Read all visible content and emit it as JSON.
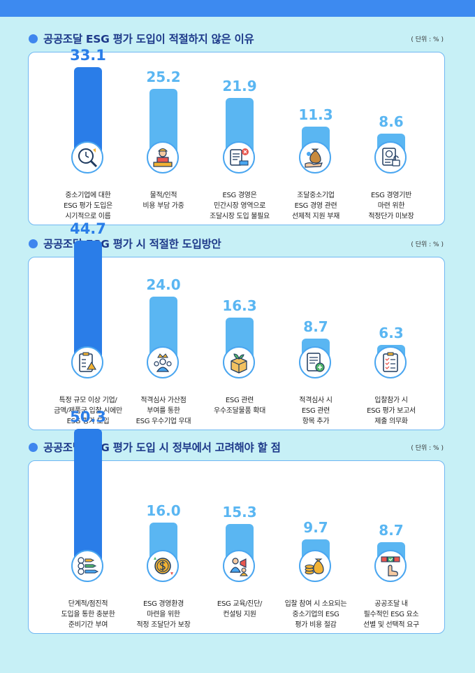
{
  "colors": {
    "background": "#c7f0f6",
    "top_bar": "#3d8af0",
    "title": "#1e3a8a",
    "bar_highlight": "#2a7de8",
    "bar_default": "#5ab6f2",
    "panel_border": "#6fb7f2"
  },
  "sections": [
    {
      "title": "공공조달 ESG 평가 도입이 적절하지 않은 이유",
      "unit": "( 단위 : % )",
      "items": [
        {
          "value": "33.1",
          "label": "중소기업에 대한\nESG 평가 도입은\n시기적으로 이름",
          "icon": "magnifier-clock-icon"
        },
        {
          "value": "25.2",
          "label": "물적/인적\n비용 부담 가중",
          "icon": "worker-desk-icon"
        },
        {
          "value": "21.9",
          "label": "ESG 경영은\n민간시장 영역으로\n조달시장 도입 불필요",
          "icon": "clipboard-cart-icon"
        },
        {
          "value": "11.3",
          "label": "조달중소기업\nESG 경영 관련\n선제적 지원 부재",
          "icon": "hand-money-bag-icon"
        },
        {
          "value": "8.6",
          "label": "ESG 경영기반\n마련 위한\n적정단가 미보장",
          "icon": "dollar-document-lock-icon"
        }
      ]
    },
    {
      "title": "공공조달 ESG 평가 시 적절한 도입방안",
      "unit": "( 단위 : % )",
      "items": [
        {
          "value": "44.7",
          "label": "특정 규모 이상 기업/\n금액/제품군 입찰 시에만\nESG 평가 도입",
          "icon": "clipboard-warning-icon"
        },
        {
          "value": "24.0",
          "label": "적격심사 가산점\n부여를 통한\nESG 우수기업 우대",
          "icon": "crown-people-icon"
        },
        {
          "value": "16.3",
          "label": "ESG 관련\n우수조달물품 확대",
          "icon": "box-sprout-icon"
        },
        {
          "value": "8.7",
          "label": "적격심사 시\nESG 관련\n항목 추가",
          "icon": "document-plus-icon"
        },
        {
          "value": "6.3",
          "label": "입찰참가 시\nESG 평가 보고서\n제출 의무화",
          "icon": "checklist-icon"
        }
      ]
    },
    {
      "title": "공공조달 ESG 평가 도입 시 정부에서 고려해야 할 점",
      "unit": "( 단위 : % )",
      "items": [
        {
          "value": "50.3",
          "label": "단계적/점진적\n도입을 통한 충분한\n준비기간 부여",
          "icon": "steps-arrows-icon"
        },
        {
          "value": "16.0",
          "label": "ESG 경영환경\n마련을 위한\n적정 조달단가 보장",
          "icon": "dollar-coin-icon"
        },
        {
          "value": "15.3",
          "label": "ESG 교육/진단/\n컨설팅 지원",
          "icon": "teacher-megaphone-icon"
        },
        {
          "value": "9.7",
          "label": "입찰 참여 시 소요되는\n중소기업의 ESG\n평가 비용 절감",
          "icon": "coins-bag-icon"
        },
        {
          "value": "8.7",
          "label": "공공조달 내\n필수적인 ESG 요소\n선별 및 선택적 요구",
          "icon": "hand-checklist-icon"
        }
      ]
    }
  ],
  "chart_data": [
    {
      "type": "bar",
      "title": "공공조달 ESG 평가 도입이 적절하지 않은 이유",
      "categories": [
        "중소기업에 대한 ESG 평가 도입은 시기적으로 이름",
        "물적/인적 비용 부담 가중",
        "ESG 경영은 민간시장 영역으로 조달시장 도입 불필요",
        "조달중소기업 ESG 경영 관련 선제적 지원 부재",
        "ESG 경영기반 마련 위한 적정단가 미보장"
      ],
      "values": [
        33.1,
        25.2,
        21.9,
        11.3,
        8.6
      ],
      "unit": "%",
      "ylim": [
        0,
        55
      ]
    },
    {
      "type": "bar",
      "title": "공공조달 ESG 평가 시 적절한 도입방안",
      "categories": [
        "특정 규모 이상 기업/금액/제품군 입찰 시에만 ESG 평가 도입",
        "적격심사 가산점 부여를 통한 ESG 우수기업 우대",
        "ESG 관련 우수조달물품 확대",
        "적격심사 시 ESG 관련 항목 추가",
        "입찰참가 시 ESG 평가 보고서 제출 의무화"
      ],
      "values": [
        44.7,
        24.0,
        16.3,
        8.7,
        6.3
      ],
      "unit": "%",
      "ylim": [
        0,
        55
      ]
    },
    {
      "type": "bar",
      "title": "공공조달 ESG 평가 도입 시 정부에서 고려해야 할 점",
      "categories": [
        "단계적/점진적 도입을 통한 충분한 준비기간 부여",
        "ESG 경영환경 마련을 위한 적정 조달단가 보장",
        "ESG 교육/진단/컨설팅 지원",
        "입찰 참여 시 소요되는 중소기업의 ESG 평가 비용 절감",
        "공공조달 내 필수적인 ESG 요소 선별 및 선택적 요구"
      ],
      "values": [
        50.3,
        16.0,
        15.3,
        9.7,
        8.7
      ],
      "unit": "%",
      "ylim": [
        0,
        55
      ]
    }
  ]
}
